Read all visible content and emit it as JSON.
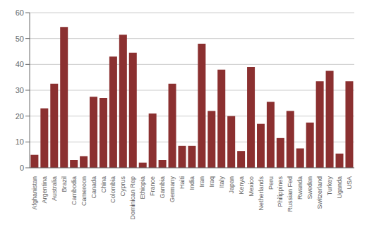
{
  "chart_data": {
    "type": "bar",
    "categories": [
      "Afghanistan",
      "Argentina",
      "Australia",
      "Brazil",
      "Cambodia",
      "Cameroon",
      "Canada",
      "China",
      "Colombia",
      "Cyprus",
      "Dominican Rep",
      "Ethiopia",
      "France",
      "Gambia",
      "Germany",
      "Haiti",
      "India",
      "Iran",
      "Iraq",
      "Italy",
      "Japan",
      "Kenya",
      "Mexico",
      "Netherlands",
      "Peru",
      "Philippines",
      "Russian Fed",
      "Rwanda",
      "Sweden",
      "Switzerland",
      "Turkey",
      "Uganda",
      "USA"
    ],
    "values": [
      5.0,
      23.0,
      32.5,
      54.5,
      3.0,
      4.5,
      27.5,
      27.0,
      43.0,
      51.5,
      44.5,
      2.0,
      21.0,
      3.0,
      32.5,
      8.5,
      8.5,
      48.0,
      22.0,
      38.0,
      20.0,
      6.5,
      39.0,
      17.0,
      25.5,
      11.5,
      22.0,
      7.5,
      17.5,
      33.5,
      37.5,
      5.5,
      33.5
    ],
    "color": "#8B3030",
    "ylim": [
      0,
      60
    ],
    "yticks": [
      0,
      10,
      20,
      30,
      40,
      50,
      60
    ],
    "grid": true
  }
}
